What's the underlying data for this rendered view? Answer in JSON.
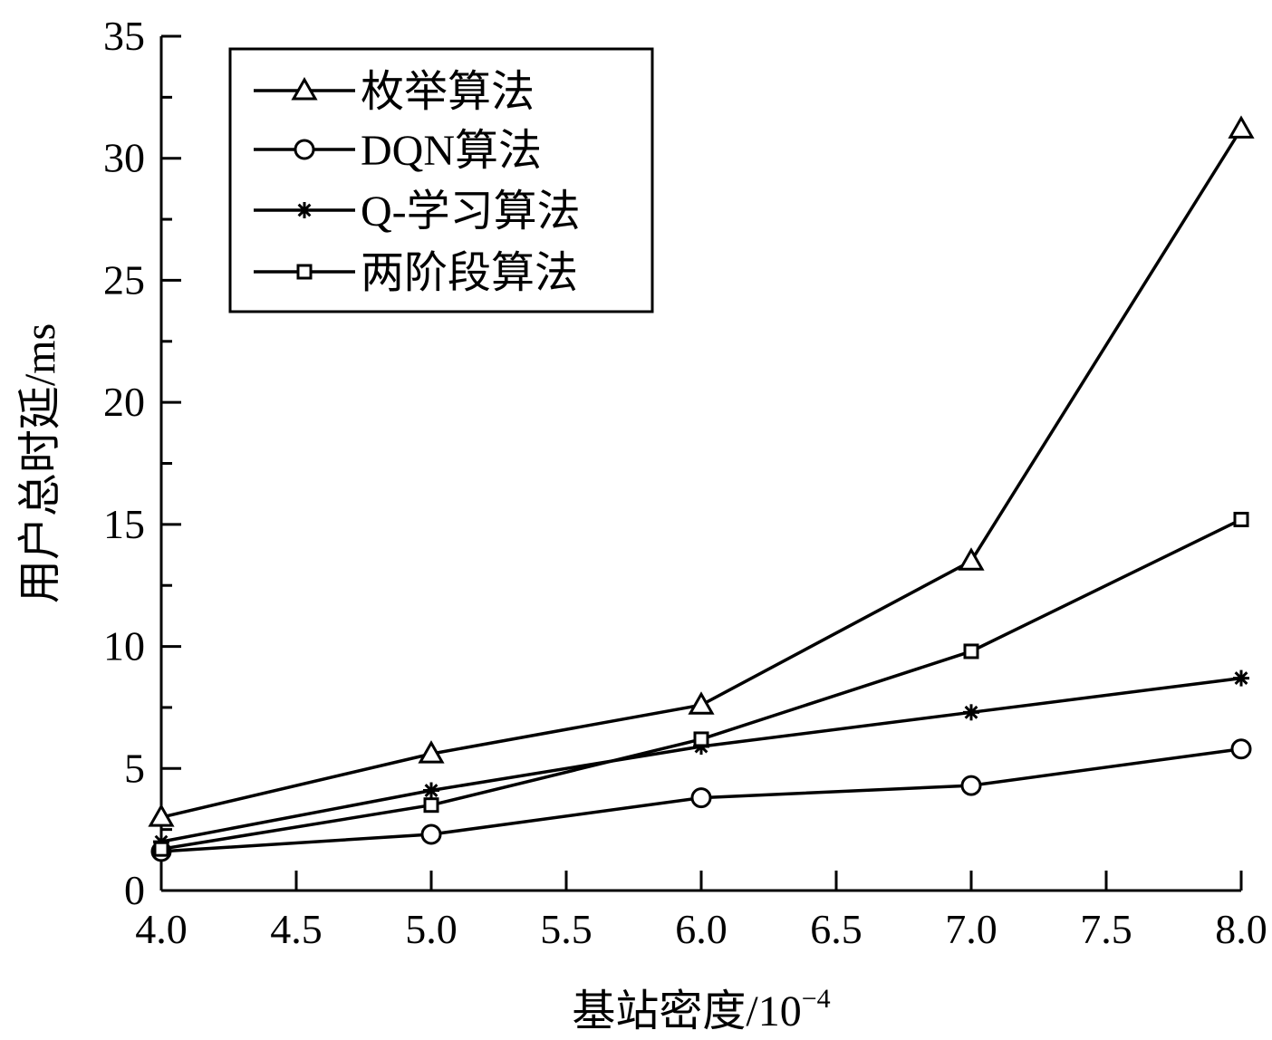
{
  "chart_data": {
    "type": "line",
    "xlabel_main": "基站密度/10",
    "xlabel_exponent": "−4",
    "ylabel": "用户总时延/ms",
    "xlim": [
      4.0,
      8.0
    ],
    "ylim": [
      0,
      35
    ],
    "x_ticks": [
      "4.0",
      "4.5",
      "5.0",
      "5.5",
      "6.0",
      "6.5",
      "7.0",
      "7.5",
      "8.0"
    ],
    "y_ticks": [
      "0",
      "5",
      "10",
      "15",
      "20",
      "25",
      "30",
      "35"
    ],
    "x": [
      4.0,
      5.0,
      6.0,
      7.0,
      8.0
    ],
    "series": [
      {
        "name": "枚举算法",
        "marker": "triangle",
        "values": [
          3.0,
          5.6,
          7.6,
          13.5,
          31.2
        ]
      },
      {
        "name": "DQN算法",
        "marker": "circle",
        "values": [
          1.6,
          2.3,
          3.8,
          4.3,
          5.8
        ]
      },
      {
        "name": "Q-学习算法",
        "marker": "asterisk",
        "values": [
          2.0,
          4.1,
          5.9,
          7.3,
          8.7
        ]
      },
      {
        "name": "两阶段算法",
        "marker": "square",
        "values": [
          1.7,
          3.5,
          6.2,
          9.8,
          15.2
        ]
      }
    ],
    "legend_position": "top-left",
    "grid": false,
    "line_color": "#000000"
  }
}
